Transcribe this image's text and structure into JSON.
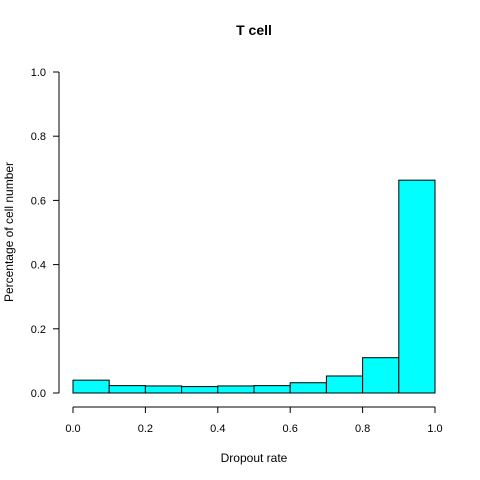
{
  "chart_data": {
    "type": "bar",
    "title": "T cell",
    "xlabel": "Dropout rate",
    "ylabel": "Percentage of cell number",
    "xlim": [
      0,
      1
    ],
    "ylim": [
      0,
      1
    ],
    "x_ticks": [
      "0.0",
      "0.2",
      "0.4",
      "0.6",
      "0.8",
      "1.0"
    ],
    "y_ticks": [
      "0.0",
      "0.2",
      "0.4",
      "0.6",
      "0.8",
      "1.0"
    ],
    "bins": [
      {
        "start": 0.0,
        "end": 0.1,
        "value": 0.04
      },
      {
        "start": 0.1,
        "end": 0.2,
        "value": 0.023
      },
      {
        "start": 0.2,
        "end": 0.3,
        "value": 0.022
      },
      {
        "start": 0.3,
        "end": 0.4,
        "value": 0.02
      },
      {
        "start": 0.4,
        "end": 0.5,
        "value": 0.022
      },
      {
        "start": 0.5,
        "end": 0.6,
        "value": 0.023
      },
      {
        "start": 0.6,
        "end": 0.7,
        "value": 0.032
      },
      {
        "start": 0.7,
        "end": 0.8,
        "value": 0.053
      },
      {
        "start": 0.8,
        "end": 0.9,
        "value": 0.11
      },
      {
        "start": 0.9,
        "end": 1.0,
        "value": 0.663
      }
    ],
    "bar_color": "#00ffff",
    "grid": false,
    "legend": "none"
  }
}
